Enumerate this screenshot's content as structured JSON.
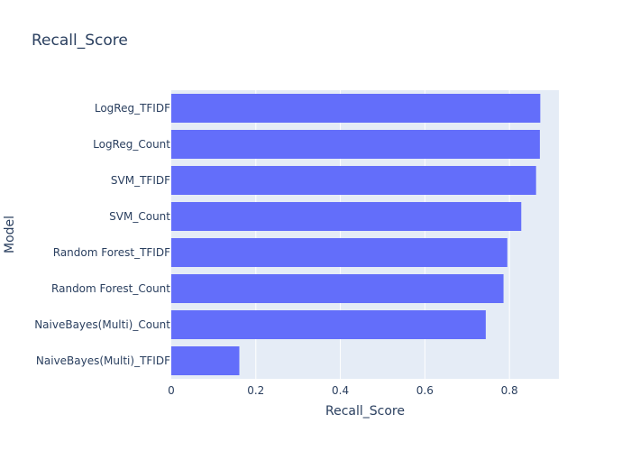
{
  "chart_data": {
    "type": "bar",
    "orientation": "horizontal",
    "title": "Recall_Score",
    "xlabel": "Recall_Score",
    "ylabel": "Model",
    "categories": [
      "LogReg_TFIDF",
      "LogReg_Count",
      "SVM_TFIDF",
      "SVM_Count",
      "Random Forest_TFIDF",
      "Random Forest_Count",
      "NaiveBayes(Multi)_Count",
      "NaiveBayes(Multi)_TFIDF"
    ],
    "values": [
      0.873,
      0.872,
      0.863,
      0.828,
      0.795,
      0.786,
      0.744,
      0.161
    ],
    "xlim": [
      0,
      0.917
    ],
    "xticks": [
      0,
      0.2,
      0.4,
      0.6,
      0.8
    ],
    "xtick_labels": [
      "0",
      "0.2",
      "0.4",
      "0.6",
      "0.8"
    ],
    "grid": true,
    "colors": {
      "bar": "#636efa",
      "plot_bg": "#e5ecf6",
      "grid": "#ffffff",
      "text": "#2a3f5f"
    }
  }
}
